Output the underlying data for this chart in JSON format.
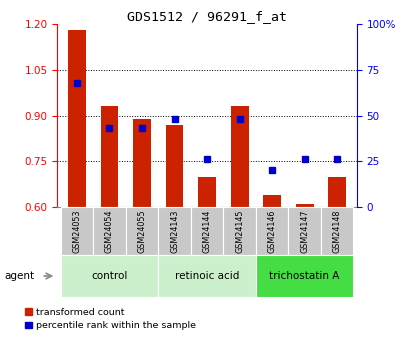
{
  "title": "GDS1512 / 96291_f_at",
  "categories": [
    "GSM24053",
    "GSM24054",
    "GSM24055",
    "GSM24143",
    "GSM24144",
    "GSM24145",
    "GSM24146",
    "GSM24147",
    "GSM24148"
  ],
  "red_values": [
    1.18,
    0.93,
    0.89,
    0.87,
    0.7,
    0.93,
    0.64,
    0.61,
    0.7
  ],
  "blue_values": [
    68,
    43,
    43,
    48,
    26,
    48,
    20,
    26,
    26
  ],
  "ylim_left": [
    0.6,
    1.2
  ],
  "ylim_right": [
    0,
    100
  ],
  "yticks_left": [
    0.6,
    0.75,
    0.9,
    1.05,
    1.2
  ],
  "yticks_right": [
    0,
    25,
    50,
    75,
    100
  ],
  "ytick_labels_right": [
    "0",
    "25",
    "50",
    "75",
    "100%"
  ],
  "groups": [
    {
      "label": "control",
      "indices": [
        0,
        1,
        2
      ],
      "color": "#ccf0cc"
    },
    {
      "label": "retinoic acid",
      "indices": [
        3,
        4,
        5
      ],
      "color": "#ccf0cc"
    },
    {
      "label": "trichostatin A",
      "indices": [
        6,
        7,
        8
      ],
      "color": "#44dd44"
    }
  ],
  "bar_color": "#cc2200",
  "dot_color": "#0000cc",
  "bar_bottom": 0.6,
  "agent_label": "agent",
  "legend_red": "transformed count",
  "legend_blue": "percentile rank within the sample",
  "xlabels_bg": "#c8c8c8",
  "grid_lines": [
    0.75,
    0.9,
    1.05
  ]
}
